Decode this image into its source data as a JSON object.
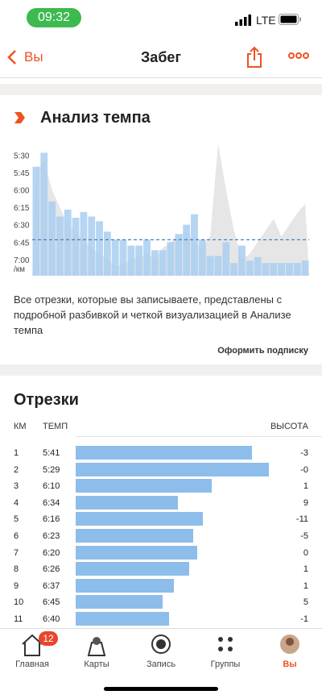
{
  "status_bar": {
    "time": "09:32",
    "network": "LTE"
  },
  "nav": {
    "back": "Вы",
    "title": "Забег"
  },
  "pace_analysis": {
    "title": "Анализ темпа",
    "chart_data": {
      "type": "bar",
      "values": [
        340,
        328,
        370,
        383,
        377,
        384,
        379,
        383,
        387,
        396,
        403,
        403,
        408,
        408,
        403,
        412,
        412,
        405,
        398,
        390,
        381,
        403,
        417,
        417,
        405,
        423,
        408,
        421,
        418,
        423,
        423,
        423,
        423,
        423,
        421
      ],
      "area_values": [
        345,
        335,
        360,
        375,
        390,
        395,
        405,
        410,
        415,
        420,
        425,
        425,
        420,
        418,
        415,
        420,
        410,
        405,
        400,
        395,
        405,
        410,
        400,
        320,
        360,
        395,
        420,
        415,
        405,
        395,
        385,
        400,
        390,
        380,
        372
      ],
      "average": 403,
      "color": "#a9cef1",
      "area_color": "#e6e6e6",
      "average_color": "#4a7fb5",
      "ylim": [
        320,
        434
      ],
      "yticks": [
        {
          "value": 330,
          "label": "5:30"
        },
        {
          "value": 345,
          "label": "5:45"
        },
        {
          "value": 360,
          "label": "6:00"
        },
        {
          "value": 375,
          "label": "6:15"
        },
        {
          "value": 390,
          "label": "6:30"
        },
        {
          "value": 405,
          "label": "6:45"
        },
        {
          "value": 420,
          "label": "7:00"
        }
      ],
      "y_unit": "/км"
    },
    "description": "Все отрезки, которые вы записываете, представлены с подробной разбивкой и четкой визуализацией в Анализе темпа",
    "cta": "Оформить подписку"
  },
  "splits": {
    "title": "Отрезки",
    "headers": [
      "КМ",
      "ТЕМП",
      "ВЫСОТА"
    ],
    "bar_color": "#8dbdeb",
    "pace_zero": 467,
    "rows": [
      {
        "km": 1,
        "pace": {
          "value": 341,
          "label": "5:41"
        },
        "elevation": -3
      },
      {
        "km": 2,
        "pace": {
          "value": 329,
          "label": "5:29"
        },
        "elevation": "-0"
      },
      {
        "km": 3,
        "pace": {
          "value": 370,
          "label": "6:10"
        },
        "elevation": 1
      },
      {
        "km": 4,
        "pace": {
          "value": 394,
          "label": "6:34"
        },
        "elevation": 9
      },
      {
        "km": 5,
        "pace": {
          "value": 376,
          "label": "6:16"
        },
        "elevation": -11
      },
      {
        "km": 6,
        "pace": {
          "value": 383,
          "label": "6:23"
        },
        "elevation": -5
      },
      {
        "km": 7,
        "pace": {
          "value": 380,
          "label": "6:20"
        },
        "elevation": 0
      },
      {
        "km": 8,
        "pace": {
          "value": 386,
          "label": "6:26"
        },
        "elevation": 1
      },
      {
        "km": 9,
        "pace": {
          "value": 397,
          "label": "6:37"
        },
        "elevation": 1
      },
      {
        "km": 10,
        "pace": {
          "value": 405,
          "label": "6:45"
        },
        "elevation": 5
      },
      {
        "km": 11,
        "pace": {
          "value": 400,
          "label": "6:40"
        },
        "elevation": -1
      }
    ]
  },
  "tab_bar": {
    "badge": "12",
    "tabs": [
      "Главная",
      "Карты",
      "Запись",
      "Группы",
      "Вы"
    ]
  }
}
